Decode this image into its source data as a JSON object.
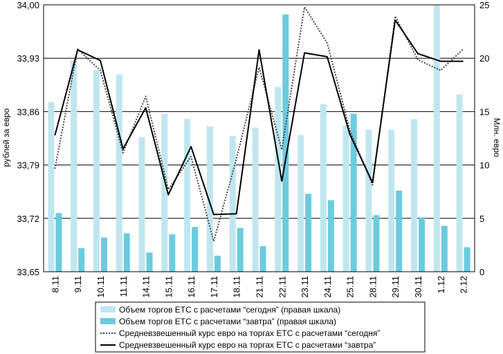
{
  "chart_data": {
    "type": "bar+line",
    "title": "",
    "categories": [
      "8.11",
      "9.11",
      "10.11",
      "11.11",
      "14.11",
      "15.11",
      "16.11",
      "17.11",
      "18.11",
      "21.11",
      "22.11",
      "23.11",
      "24.11",
      "25.11",
      "28.11",
      "29.11",
      "30.11",
      "1.12",
      "2.12"
    ],
    "left_axis": {
      "label": "рублей за евро",
      "min": 33.65,
      "max": 34.0,
      "ticks": [
        "34,00",
        "33,93",
        "33,86",
        "33,79",
        "33,72",
        "33,65"
      ],
      "tick_values": [
        34.0,
        33.93,
        33.86,
        33.79,
        33.72,
        33.65
      ]
    },
    "right_axis": {
      "label": "Млн. евро",
      "min": 0,
      "max": 25,
      "ticks": [
        "25",
        "20",
        "15",
        "10",
        "5",
        "0"
      ],
      "tick_values": [
        25,
        20,
        15,
        10,
        5,
        0
      ]
    },
    "grid": "horizontal",
    "legend_position": "bottom",
    "series": [
      {
        "name": "Объем торгов ЕТС с расчетами “сегодня” (правая шкала)",
        "kind": "bar",
        "axis": "right",
        "color": "#bfe6f0",
        "values": [
          15.9,
          19.8,
          18.9,
          18.5,
          12.6,
          14.8,
          14.3,
          13.6,
          12.7,
          13.5,
          17.3,
          12.8,
          15.7,
          13.7,
          13.3,
          13.3,
          14.3,
          25.0,
          16.6
        ]
      },
      {
        "name": "Объем торгов ЕТС с расчетами “завтра” (правая шкала)",
        "kind": "bar",
        "axis": "right",
        "color": "#6ccbdf",
        "values": [
          5.5,
          2.2,
          3.2,
          3.6,
          1.8,
          3.5,
          4.2,
          1.5,
          4.1,
          2.4,
          24.1,
          7.3,
          6.7,
          14.8,
          5.3,
          7.6,
          5.1,
          4.3,
          2.3
        ]
      },
      {
        "name": "Средневзвешенный курс евро на торгах ЕТС с расчетами “сегодня”",
        "kind": "line",
        "axis": "left",
        "style": "dotted",
        "color": "#444444",
        "values": [
          33.785,
          33.942,
          33.914,
          33.806,
          33.88,
          33.758,
          33.801,
          33.69,
          33.798,
          33.918,
          33.81,
          33.997,
          33.95,
          33.835,
          33.764,
          33.985,
          33.928,
          33.914,
          33.942
        ]
      },
      {
        "name": "Средневзвешенный курс евро на торгах ЕТС с расчетами “завтра”",
        "kind": "line",
        "axis": "left",
        "style": "solid",
        "color": "#000000",
        "values": [
          33.829,
          33.941,
          33.927,
          33.811,
          33.865,
          33.751,
          33.814,
          33.725,
          33.726,
          33.941,
          33.769,
          33.937,
          33.932,
          33.83,
          33.767,
          33.98,
          33.936,
          33.926,
          33.926
        ]
      }
    ]
  }
}
